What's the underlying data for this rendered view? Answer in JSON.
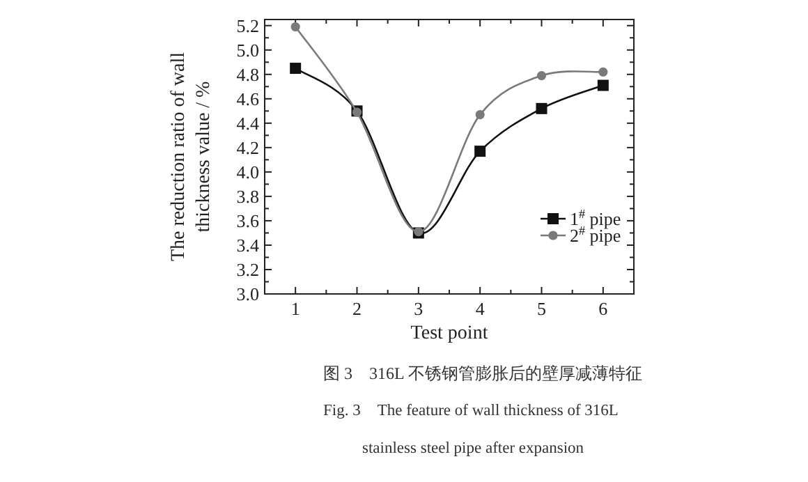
{
  "chart_data": {
    "type": "line",
    "xlabel": "Test point",
    "ylabel": "The reduction ratio of wall thickness value / %",
    "x": [
      1,
      2,
      3,
      4,
      5,
      6
    ],
    "xlim": [
      0.5,
      6.5
    ],
    "xticks": [
      1,
      2,
      3,
      4,
      5,
      6,
      {
        "value": 1.5,
        "label": null
      },
      {
        "value": 2.5,
        "label": null
      },
      {
        "value": 3.5,
        "label": null
      },
      {
        "value": 4.5,
        "label": null
      },
      {
        "value": 5.5,
        "label": null
      }
    ],
    "ylim": [
      3.0,
      5.25
    ],
    "yticks": [
      {
        "value": 3.0,
        "label": "3.0"
      },
      {
        "value": 3.2,
        "label": "3.2"
      },
      {
        "value": 3.4,
        "label": "3.4"
      },
      {
        "value": 3.6,
        "label": "3.6"
      },
      {
        "value": 3.8,
        "label": "3.8"
      },
      {
        "value": 4.0,
        "label": "4.0"
      },
      {
        "value": 4.2,
        "label": "4.2"
      },
      {
        "value": 4.4,
        "label": "4.4"
      },
      {
        "value": 4.6,
        "label": "4.6"
      },
      {
        "value": 4.8,
        "label": "4.8"
      },
      {
        "value": 5.0,
        "label": "5.0"
      },
      {
        "value": 5.2,
        "label": "5.2"
      },
      {
        "value": 3.1,
        "label": null
      },
      {
        "value": 3.3,
        "label": null
      },
      {
        "value": 3.5,
        "label": null
      },
      {
        "value": 3.7,
        "label": null
      },
      {
        "value": 3.9,
        "label": null
      },
      {
        "value": 4.1,
        "label": null
      },
      {
        "value": 4.3,
        "label": null
      },
      {
        "value": 4.5,
        "label": null
      },
      {
        "value": 4.7,
        "label": null
      },
      {
        "value": 4.9,
        "label": null
      },
      {
        "value": 5.1,
        "label": null
      }
    ],
    "series": [
      {
        "name": "1$^{#}$ pipe",
        "color": "#111111",
        "marker": "square",
        "values": [
          4.85,
          4.5,
          3.5,
          4.17,
          4.52,
          4.71
        ]
      },
      {
        "name": "2$^{#}$ pipe",
        "color": "#7a7a7a",
        "marker": "circle",
        "values": [
          5.19,
          4.49,
          3.51,
          4.47,
          4.79,
          4.82
        ]
      }
    ],
    "legend": "right",
    "grid": false,
    "line_style": "solid",
    "annotations": [
      "图 3　316L 不锈钢管膨胀后的壁厚减薄特征",
      "Fig. 3　The feature of wall thickness of 316L",
      "stainless steel pipe after expansion"
    ]
  }
}
